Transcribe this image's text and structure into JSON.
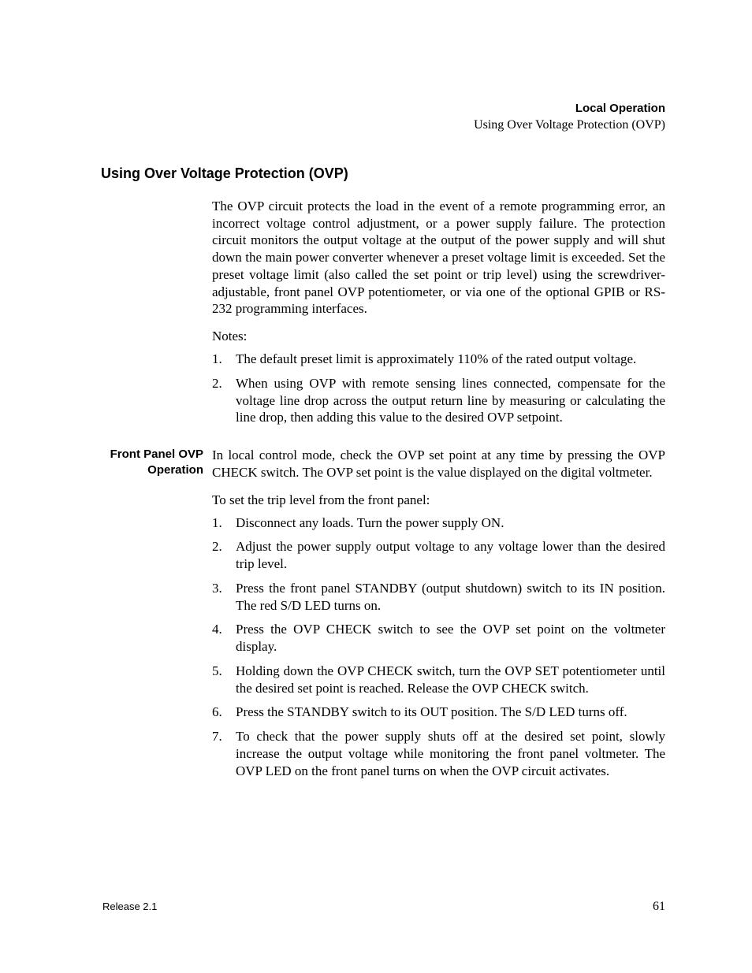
{
  "header": {
    "chapter": "Local Operation",
    "section": "Using Over Voltage Protection (OVP)"
  },
  "title": "Using Over Voltage Protection (OVP)",
  "intro": "The OVP circuit protects the load in the event of a remote programming error, an incorrect voltage control adjustment, or a power supply failure. The protection circuit monitors the output voltage at the output of the power supply and will shut down the main power converter whenever a preset voltage limit is exceeded. Set the preset voltage limit (also called the set point or trip level) using the screwdriver-adjustable, front panel OVP potentiometer, or via one of the optional GPIB or RS-232 programming interfaces.",
  "notes_label": "Notes:",
  "notes": [
    "The default preset limit is approximately 110% of the rated output voltage.",
    "When using OVP with remote sensing lines connected, compensate for the voltage line drop across the output return line by measuring or calculating the line drop, then adding this value to the desired OVP setpoint."
  ],
  "sidehead": "Front Panel OVP Operation",
  "fp_intro": "In local control mode, check the OVP set point at any time by pressing the OVP CHECK switch. The OVP set point is the value displayed on the digital voltmeter.",
  "fp_lead": "To set the trip level from the front panel:",
  "steps": [
    "Disconnect any loads. Turn the power supply ON.",
    "Adjust the power supply output voltage to any voltage lower than the desired trip level.",
    "Press the front panel STANDBY (output shutdown) switch to its IN position. The red S/D LED turns on.",
    "Press the OVP CHECK switch to see the OVP set point on the voltmeter display.",
    "Holding down the OVP CHECK switch, turn the OVP SET potentiometer until the desired set point is reached. Release the OVP CHECK switch.",
    "Press the STANDBY switch to its OUT position. The S/D LED turns off.",
    "To check that the power supply shuts off at the desired set point, slowly increase the output voltage while monitoring the front panel voltmeter. The OVP LED on the front panel turns on when the OVP circuit activates."
  ],
  "footer": {
    "release": "Release 2.1",
    "page": "61"
  }
}
